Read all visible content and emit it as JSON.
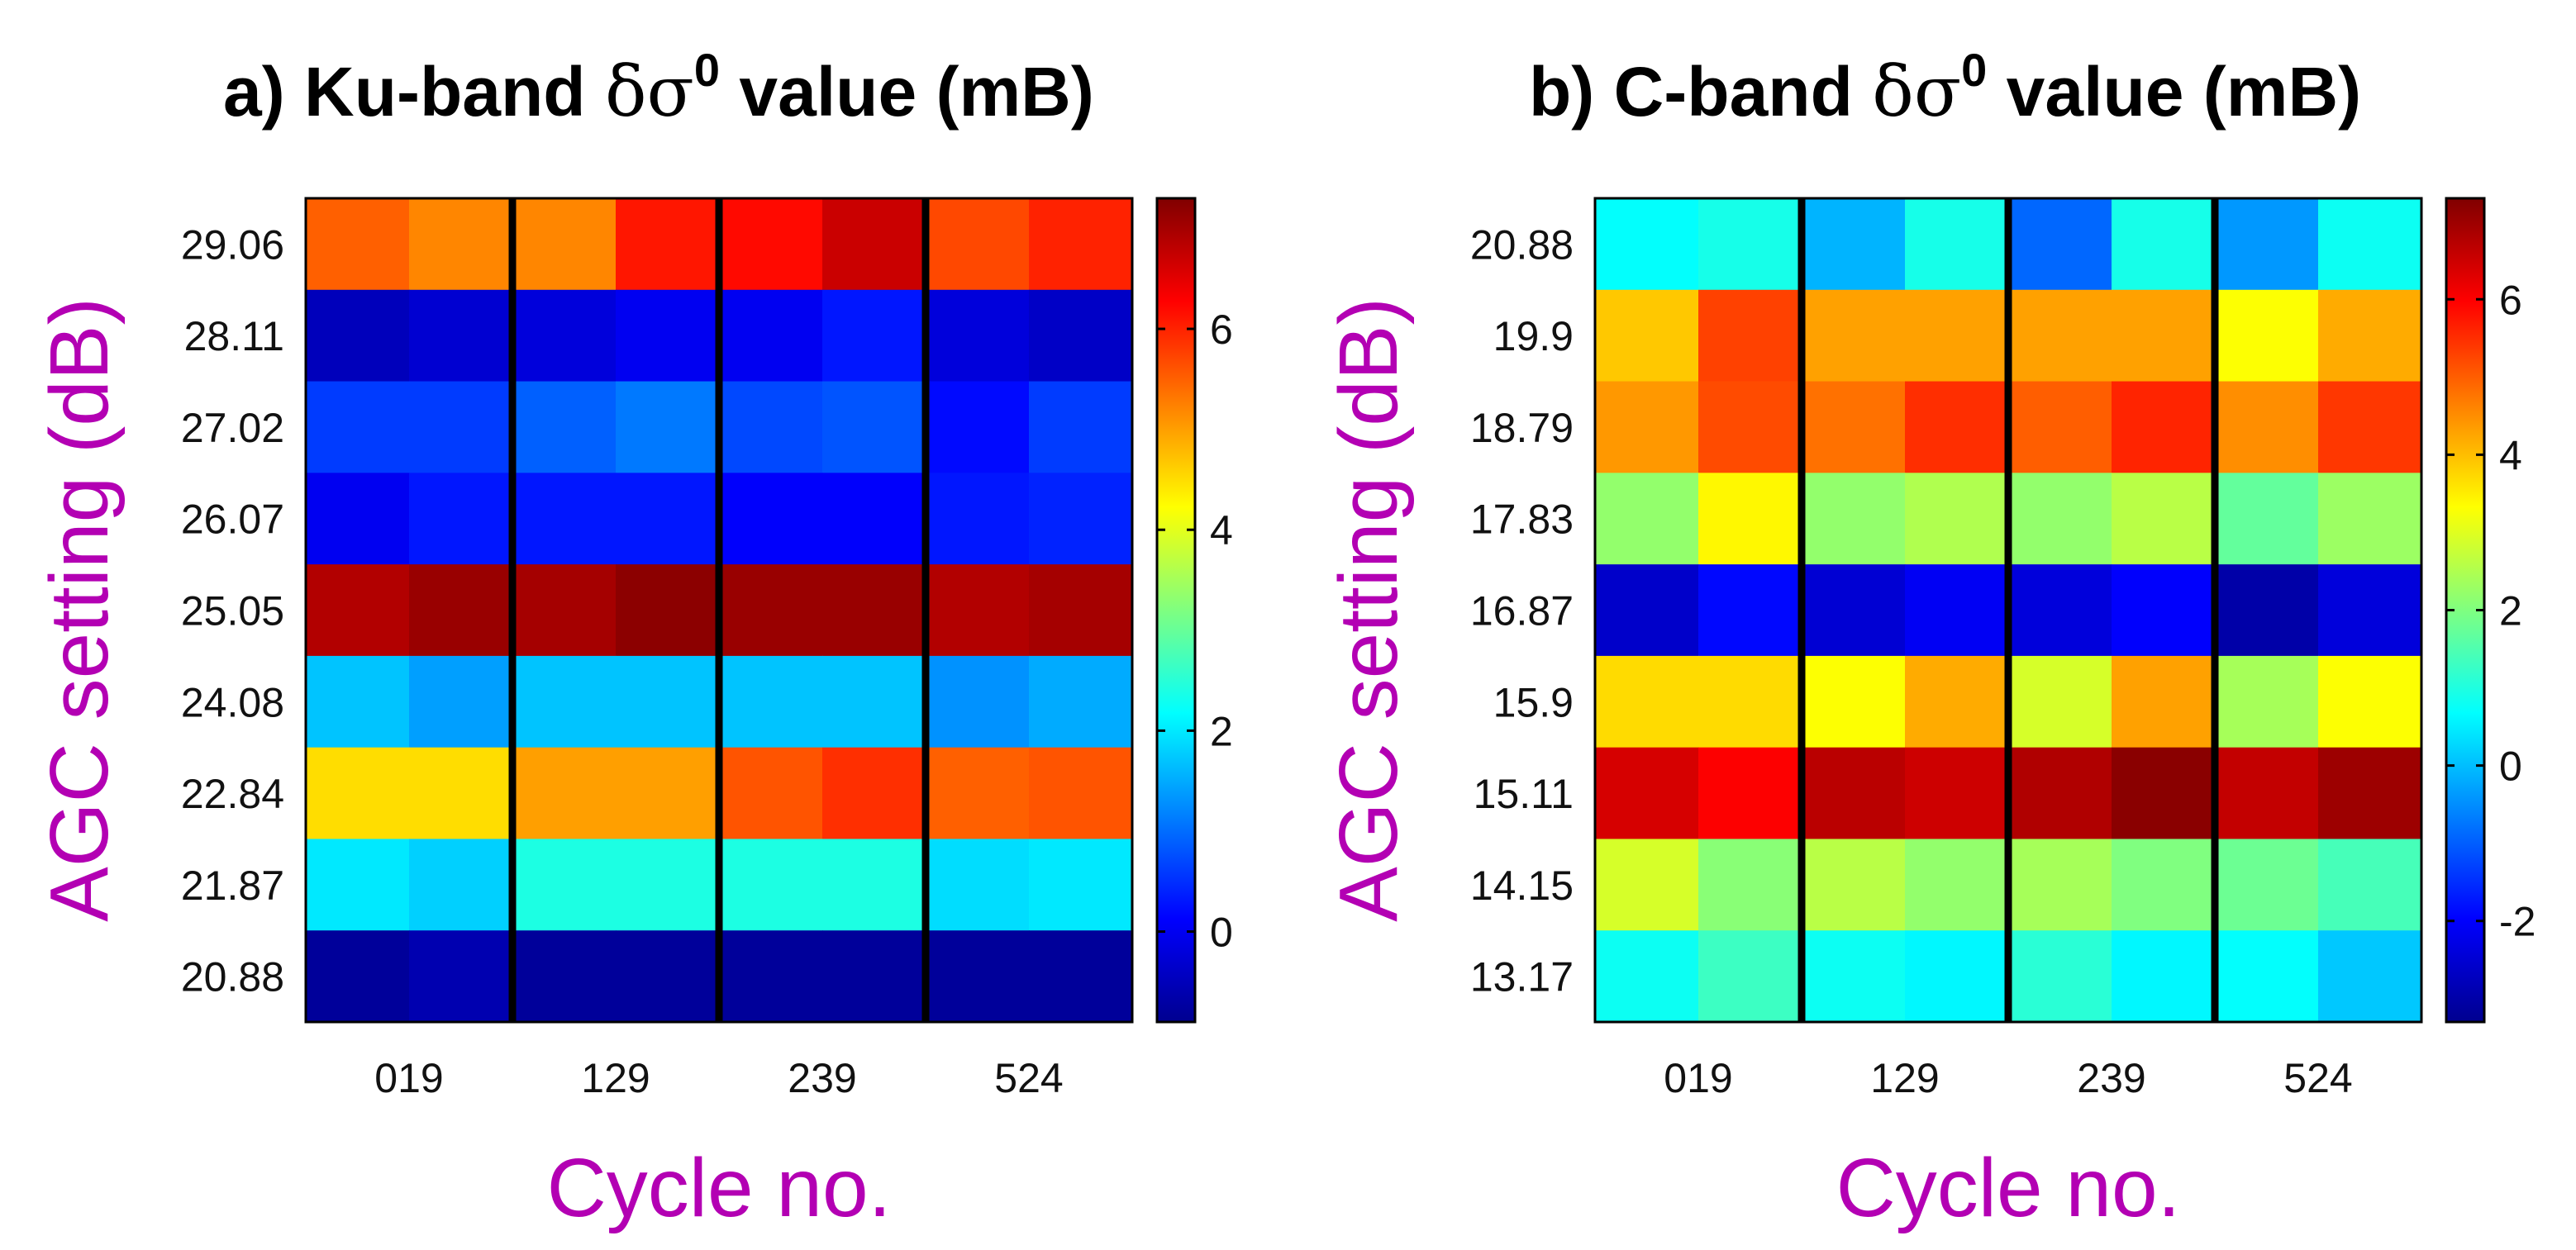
{
  "chart_data": [
    {
      "type": "heatmap",
      "title": {
        "prefix": "a)  Ku-band ",
        "symbol": "δσ",
        "superscript": "0",
        "suffix": " value (mB)"
      },
      "xlabel": "Cycle no.",
      "ylabel": "AGC setting (dB)",
      "categories": [
        "019",
        "129",
        "239",
        "524"
      ],
      "columns_per_category": 2,
      "yticks": [
        "29.06",
        "28.11",
        "27.02",
        "26.07",
        "25.05",
        "24.08",
        "22.84",
        "21.87",
        "20.88"
      ],
      "clim": [
        -0.9,
        7.3
      ],
      "colorbar_ticks": [
        "0",
        "2",
        "4",
        "6"
      ],
      "values": [
        [
          5.5,
          5.2,
          5.2,
          6.1,
          6.2,
          6.7,
          5.7,
          6.0
        ],
        [
          -0.5,
          -0.3,
          -0.2,
          0.0,
          0.0,
          0.3,
          -0.2,
          -0.4
        ],
        [
          0.6,
          0.6,
          0.9,
          1.1,
          0.7,
          0.8,
          0.2,
          0.6
        ],
        [
          0.0,
          0.3,
          0.3,
          0.3,
          0.1,
          0.1,
          0.3,
          0.4
        ],
        [
          6.9,
          7.1,
          7.0,
          7.2,
          7.1,
          7.1,
          6.9,
          7.0
        ],
        [
          1.7,
          1.4,
          1.7,
          1.7,
          1.7,
          1.7,
          1.3,
          1.5
        ],
        [
          4.5,
          4.5,
          5.0,
          5.0,
          5.6,
          5.9,
          5.5,
          5.6
        ],
        [
          2.0,
          1.8,
          2.4,
          2.4,
          2.4,
          2.4,
          1.9,
          2.0
        ],
        [
          -0.8,
          -0.6,
          -0.8,
          -0.8,
          -0.8,
          -0.8,
          -0.8,
          -0.8
        ]
      ]
    },
    {
      "type": "heatmap",
      "title": {
        "prefix": "b)  C-band ",
        "symbol": "δσ",
        "superscript": "0",
        "suffix": " value (mB)"
      },
      "xlabel": "Cycle no.",
      "ylabel": "AGC setting (dB)",
      "categories": [
        "019",
        "129",
        "239",
        "524"
      ],
      "columns_per_category": 2,
      "yticks": [
        "20.88",
        "19.9",
        "18.79",
        "17.83",
        "16.87",
        "15.9",
        "15.11",
        "14.15",
        "13.17"
      ],
      "clim": [
        -3.3,
        7.3
      ],
      "colorbar_ticks": [
        "-2",
        "0",
        "2",
        "4",
        "6"
      ],
      "values": [
        [
          0.7,
          0.9,
          -0.1,
          0.9,
          -0.9,
          0.9,
          -0.4,
          0.8
        ],
        [
          3.9,
          5.3,
          4.3,
          4.3,
          4.3,
          4.3,
          3.3,
          4.2
        ],
        [
          4.4,
          5.2,
          4.8,
          5.5,
          5.0,
          5.6,
          4.5,
          5.4
        ],
        [
          2.2,
          3.4,
          2.2,
          2.5,
          2.2,
          2.6,
          1.7,
          2.3
        ],
        [
          -2.6,
          -1.9,
          -2.5,
          -2.1,
          -2.4,
          -2.0,
          -3.0,
          -2.4
        ],
        [
          3.7,
          3.7,
          3.3,
          4.2,
          2.9,
          4.3,
          2.4,
          3.3
        ],
        [
          6.4,
          6.0,
          6.7,
          6.5,
          6.8,
          7.2,
          6.6,
          7.0
        ],
        [
          2.9,
          2.1,
          2.6,
          2.2,
          2.4,
          2.0,
          1.8,
          1.4
        ],
        [
          0.8,
          1.3,
          0.8,
          0.6,
          1.1,
          0.6,
          0.7,
          0.1
        ]
      ]
    }
  ]
}
